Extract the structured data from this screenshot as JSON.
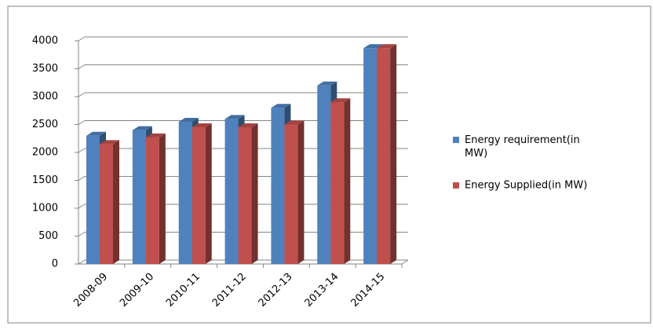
{
  "chart_data": {
    "type": "bar3d",
    "categories": [
      "2008-09",
      "2009-10",
      "2010-11",
      "2011-12",
      "2012-13",
      "2013-14",
      "2014-15"
    ],
    "series": [
      {
        "name": "Energy requirement(in MW)",
        "color": "#4f81bd",
        "values": [
          2300,
          2400,
          2550,
          2600,
          2800,
          3200,
          3870
        ]
      },
      {
        "name": "Energy Supplied(in MW)",
        "color": "#c0504d",
        "values": [
          2150,
          2270,
          2450,
          2450,
          2500,
          2900,
          3870
        ]
      }
    ],
    "ylim": [
      0,
      4000
    ],
    "yticks": [
      0,
      500,
      1000,
      1500,
      2000,
      2500,
      3000,
      3500,
      4000
    ],
    "grid": true,
    "legend": "right"
  }
}
